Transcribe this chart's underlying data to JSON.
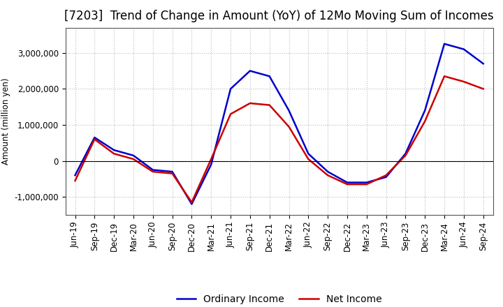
{
  "title": "[7203]  Trend of Change in Amount (YoY) of 12Mo Moving Sum of Incomes",
  "ylabel": "Amount (million yen)",
  "x_labels": [
    "Jun-19",
    "Sep-19",
    "Dec-19",
    "Mar-20",
    "Jun-20",
    "Sep-20",
    "Dec-20",
    "Mar-21",
    "Jun-21",
    "Sep-21",
    "Dec-21",
    "Mar-22",
    "Jun-22",
    "Sep-22",
    "Dec-22",
    "Mar-23",
    "Jun-23",
    "Sep-23",
    "Dec-23",
    "Mar-24",
    "Jun-24",
    "Sep-24"
  ],
  "ordinary_income": [
    -400000,
    650000,
    300000,
    150000,
    -250000,
    -300000,
    -1200000,
    -100000,
    2000000,
    2500000,
    2350000,
    1400000,
    200000,
    -300000,
    -600000,
    -600000,
    -450000,
    200000,
    1400000,
    3250000,
    3100000,
    2700000
  ],
  "net_income": [
    -550000,
    600000,
    200000,
    50000,
    -300000,
    -350000,
    -1150000,
    50000,
    1300000,
    1600000,
    1550000,
    950000,
    50000,
    -400000,
    -650000,
    -650000,
    -400000,
    150000,
    1100000,
    2350000,
    2200000,
    2000000
  ],
  "ordinary_income_color": "#0000cc",
  "net_income_color": "#cc0000",
  "ylim": [
    -1500000,
    3700000
  ],
  "yticks": [
    -1000000,
    0,
    1000000,
    2000000,
    3000000
  ],
  "background_color": "#ffffff",
  "grid_color": "#bbbbbb",
  "line_width": 1.8,
  "title_fontsize": 12,
  "legend_fontsize": 10,
  "tick_fontsize": 8.5
}
